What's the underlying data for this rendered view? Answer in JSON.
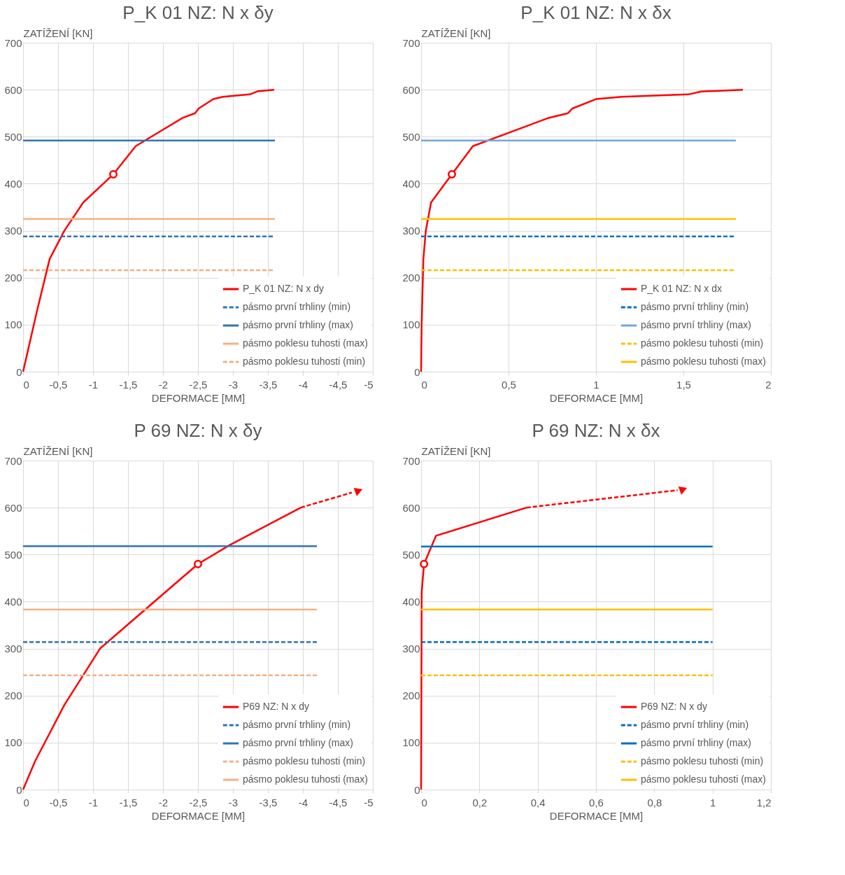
{
  "chart_data": [
    {
      "type": "line",
      "title": "P_K 01 NZ: N x δy",
      "xlabel": "DEFORMACE [MM]",
      "ylabel": "ZATÍŽENÍ [KN]",
      "xlim": [
        0,
        -5
      ],
      "xticks": [
        0,
        {
          "value": -0.5,
          "label": "-0,5"
        },
        -1,
        {
          "value": -1.5,
          "label": "-1,5"
        },
        -2,
        {
          "value": -2.5,
          "label": "-2,5"
        },
        -3,
        {
          "value": -3.5,
          "label": "-3,5"
        },
        -4,
        {
          "value": -4.5,
          "label": "-4,5"
        },
        -5
      ],
      "ylim": [
        0,
        700
      ],
      "yticks": [
        0,
        100,
        200,
        300,
        400,
        500,
        600,
        700
      ],
      "grid": true,
      "legend": "bottom right",
      "series": [
        {
          "name": "P_K 01 NZ: N x dy",
          "color": "#ff0000",
          "line_style": "solid",
          "x": [
            0,
            -0.2,
            -0.38,
            -0.59,
            -0.86,
            -1.29,
            -1.61,
            -2.0,
            -2.28,
            -2.46,
            -2.51,
            -2.72,
            -2.86,
            -3.24,
            -3.36,
            -3.59
          ],
          "values": [
            0,
            130,
            240,
            300,
            360,
            420,
            480,
            515,
            540,
            550,
            560,
            580,
            585,
            590,
            597,
            600
          ]
        },
        {
          "name": "pásmo první trhliny (min)",
          "color": "#2e75b6",
          "line_style": "dashed",
          "x": [
            0,
            -3.6
          ],
          "values": [
            288,
            288
          ]
        },
        {
          "name": "pásmo první trhliny (max)",
          "color": "#2e75b6",
          "line_style": "solid",
          "x": [
            0,
            -3.6
          ],
          "values": [
            492,
            492
          ]
        },
        {
          "name": "pásmo poklesu tuhosti (max)",
          "color": "#f4b183",
          "line_style": "solid",
          "x": [
            0,
            -3.6
          ],
          "values": [
            325,
            325
          ]
        },
        {
          "name": "pásmo poklesu tuhosti (min)",
          "color": "#f4b183",
          "line_style": "dashed",
          "x": [
            0,
            -3.6
          ],
          "values": [
            216,
            216
          ]
        },
        {
          "type": "scatter",
          "marker": "circle",
          "color": "#ff0000",
          "x": [
            -1.29
          ],
          "values": [
            420
          ]
        }
      ]
    },
    {
      "type": "line",
      "title": "P_K 01 NZ: N x δx",
      "xlabel": "DEFORMACE [MM]",
      "ylabel": "ZATÍŽENÍ [KN]",
      "xlim": [
        0,
        2
      ],
      "xticks": [
        0,
        {
          "value": 0.5,
          "label": "0,5"
        },
        1,
        {
          "value": 1.5,
          "label": "1,5"
        },
        2
      ],
      "ylim": [
        0,
        700
      ],
      "yticks": [
        0,
        100,
        200,
        300,
        400,
        500,
        600,
        700
      ],
      "grid": true,
      "legend": "bottom right",
      "series": [
        {
          "name": "P_K 01 NZ: N x dx",
          "color": "#ff0000",
          "line_style": "solid",
          "x": [
            0,
            0.003,
            0.013,
            0.027,
            0.057,
            0.176,
            0.296,
            0.729,
            0.84,
            0.865,
            1.0,
            1.15,
            1.53,
            1.6,
            1.84
          ],
          "values": [
            0,
            100,
            240,
            300,
            360,
            420,
            480,
            540,
            550,
            560,
            580,
            585,
            590,
            596,
            600
          ]
        },
        {
          "name": "pásmo první trhliny (min)",
          "color": "#0070c0",
          "line_style": "dashed",
          "x": [
            0,
            1.8
          ],
          "values": [
            288,
            288
          ]
        },
        {
          "name": "pásmo první trhliny (max)",
          "color": "#6fa8dc",
          "line_style": "solid",
          "x": [
            0,
            1.8
          ],
          "values": [
            492,
            492
          ]
        },
        {
          "name": "pásmo poklesu tuhosti (min)",
          "color": "#ffc000",
          "line_style": "dashed",
          "x": [
            0,
            1.8
          ],
          "values": [
            216,
            216
          ]
        },
        {
          "name": "pásmo poklesu tuhosti (max)",
          "color": "#ffc000",
          "line_style": "solid",
          "x": [
            0,
            1.8
          ],
          "values": [
            325,
            325
          ]
        },
        {
          "type": "scatter",
          "marker": "circle",
          "color": "#ff0000",
          "x": [
            0.176
          ],
          "values": [
            420
          ]
        }
      ]
    },
    {
      "type": "line",
      "title": "P 69 NZ: N x δy",
      "xlabel": "DEFORMACE [MM]",
      "ylabel": "ZATÍŽENÍ [KN]",
      "xlim": [
        0,
        -5
      ],
      "xticks": [
        0,
        {
          "value": -0.5,
          "label": "-0,5"
        },
        -1,
        {
          "value": -1.5,
          "label": "-1,5"
        },
        -2,
        {
          "value": -2.5,
          "label": "-2,5"
        },
        -3,
        {
          "value": -3.5,
          "label": "-3,5"
        },
        -4,
        {
          "value": -4.5,
          "label": "-4,5"
        },
        -5
      ],
      "ylim": [
        0,
        700
      ],
      "yticks": [
        0,
        100,
        200,
        300,
        400,
        500,
        600,
        700
      ],
      "grid": true,
      "legend": "bottom right",
      "series": [
        {
          "name": "P69 NZ: N x dy",
          "color": "#ff0000",
          "line_style": "solid",
          "x": [
            0,
            -0.17,
            -0.59,
            -1.1,
            -2.5,
            -2.95,
            -3.97
          ],
          "values": [
            0,
            60,
            180,
            300,
            480,
            520,
            600
          ]
        },
        {
          "name": "pásmo první trhliny (min)",
          "color": "#2e75b6",
          "line_style": "dashed",
          "x": [
            0,
            -4.2
          ],
          "values": [
            314,
            314
          ]
        },
        {
          "name": "pásmo první trhliny (max)",
          "color": "#2e75b6",
          "line_style": "solid",
          "x": [
            0,
            -4.2
          ],
          "values": [
            518,
            518
          ]
        },
        {
          "name": "pásmo poklesu tuhosti (min)",
          "color": "#f4b183",
          "line_style": "dashed",
          "x": [
            0,
            -4.2
          ],
          "values": [
            243,
            243
          ]
        },
        {
          "name": "pásmo poklesu tuhosti (max)",
          "color": "#f4b183",
          "line_style": "solid",
          "x": [
            0,
            -4.2
          ],
          "values": [
            383,
            383
          ]
        },
        {
          "type": "scatter",
          "marker": "circle",
          "color": "#ff0000",
          "x": [
            -2.5
          ],
          "values": [
            480
          ]
        },
        {
          "type": "line",
          "line_style": "dashed",
          "color": "#ff0000",
          "x": [
            -3.97,
            -4.7
          ],
          "values": [
            600,
            632
          ]
        },
        {
          "type": "scatter",
          "marker": "triangle",
          "color": "#ff0000",
          "x": [
            -4.8
          ],
          "values": [
            636
          ]
        }
      ]
    },
    {
      "type": "line",
      "title": "P 69 NZ: N x δx",
      "xlabel": "DEFORMACE [MM]",
      "ylabel": "ZATÍŽENÍ [KN]",
      "xlim": [
        0,
        1.2
      ],
      "xticks": [
        0,
        {
          "value": 0.2,
          "label": "0,2"
        },
        {
          "value": 0.4,
          "label": "0,4"
        },
        {
          "value": 0.6,
          "label": "0,6"
        },
        {
          "value": 0.8,
          "label": "0,8"
        },
        1,
        {
          "value": 1.2,
          "label": "1,2"
        }
      ],
      "ylim": [
        0,
        700
      ],
      "yticks": [
        0,
        100,
        200,
        300,
        400,
        500,
        600,
        700
      ],
      "grid": true,
      "legend": "bottom right",
      "series": [
        {
          "name": "P69 NZ: N x dy",
          "color": "#ff0000",
          "line_style": "solid",
          "x": [
            0,
            0.002,
            0.01,
            0.051,
            0.362
          ],
          "values": [
            0,
            420,
            480,
            540,
            600
          ]
        },
        {
          "name": "pásmo první trhliny (min)",
          "color": "#0070c0",
          "line_style": "dashed",
          "x": [
            0,
            1.0
          ],
          "values": [
            314,
            314
          ]
        },
        {
          "name": "pásmo první trhliny (max)",
          "color": "#0070c0",
          "line_style": "solid",
          "x": [
            0,
            1.0
          ],
          "values": [
            517,
            517
          ]
        },
        {
          "name": "pásmo poklesu tuhosti (min)",
          "color": "#ffc000",
          "line_style": "dashed",
          "x": [
            0,
            1.0
          ],
          "values": [
            243,
            243
          ]
        },
        {
          "name": "pásmo poklesu tuhosti (max)",
          "color": "#ffc000",
          "line_style": "solid",
          "x": [
            0,
            1.0
          ],
          "values": [
            383,
            383
          ]
        },
        {
          "type": "scatter",
          "marker": "circle",
          "color": "#ff0000",
          "x": [
            0.01
          ],
          "values": [
            480
          ]
        },
        {
          "type": "line",
          "line_style": "dashed",
          "color": "#ff0000",
          "x": [
            0.362,
            0.88
          ],
          "values": [
            600,
            637
          ]
        },
        {
          "type": "scatter",
          "marker": "triangle",
          "color": "#ff0000",
          "x": [
            0.9
          ],
          "values": [
            639
          ]
        }
      ]
    }
  ]
}
